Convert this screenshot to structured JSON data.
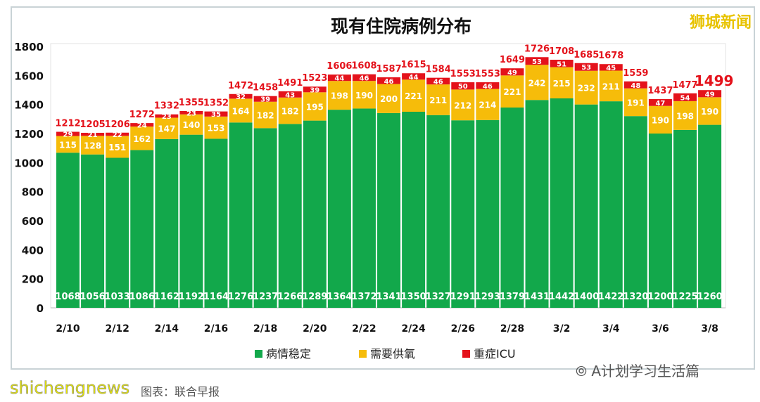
{
  "chart_data": {
    "type": "bar",
    "stacked": true,
    "title": "现有住院病例分布",
    "categories": [
      "2/10",
      "2/11",
      "2/12",
      "2/13",
      "2/14",
      "2/15",
      "2/16",
      "2/17",
      "2/18",
      "2/19",
      "2/20",
      "2/21",
      "2/22",
      "2/23",
      "2/24",
      "2/25",
      "2/26",
      "2/27",
      "2/28",
      "3/1",
      "3/2",
      "3/3",
      "3/4",
      "3/5",
      "3/6",
      "3/7",
      "3/8"
    ],
    "x_tick_labels": [
      "2/10",
      "2/12",
      "2/14",
      "2/16",
      "2/18",
      "2/20",
      "2/22",
      "2/24",
      "2/26",
      "2/28",
      "3/2",
      "3/4",
      "3/6",
      "3/8"
    ],
    "y_ticks": [
      0,
      200,
      400,
      600,
      800,
      1000,
      1200,
      1400,
      1600,
      1800
    ],
    "ylim": [
      0,
      1800
    ],
    "grid": false,
    "legend_position": "bottom",
    "series": [
      {
        "name": "病情稳定",
        "color": "#12a84b",
        "values": [
          1068,
          1056,
          1033,
          1086,
          1162,
          1192,
          1164,
          1276,
          1237,
          1266,
          1289,
          1364,
          1372,
          1341,
          1350,
          1327,
          1291,
          1293,
          1379,
          1431,
          1442,
          1400,
          1422,
          1320,
          1200,
          1225,
          1260
        ]
      },
      {
        "name": "需要供氧",
        "color": "#f6bc0a",
        "values": [
          115,
          128,
          151,
          162,
          147,
          140,
          153,
          164,
          182,
          182,
          195,
          198,
          190,
          200,
          221,
          211,
          212,
          214,
          221,
          242,
          215,
          232,
          211,
          191,
          190,
          198,
          190
        ]
      },
      {
        "name": "重症ICU",
        "color": "#e4121b",
        "values": [
          29,
          21,
          22,
          24,
          23,
          23,
          35,
          32,
          39,
          43,
          39,
          44,
          46,
          46,
          44,
          46,
          50,
          46,
          49,
          53,
          51,
          53,
          45,
          48,
          47,
          54,
          49
        ]
      }
    ],
    "totals": [
      1212,
      1205,
      1206,
      1272,
      1332,
      1355,
      1352,
      1472,
      1458,
      1491,
      1523,
      1606,
      1608,
      1587,
      1615,
      1584,
      1553,
      1553,
      1649,
      1726,
      1708,
      1685,
      1678,
      1559,
      1437,
      1477,
      1499
    ]
  },
  "watermarks": {
    "logo": "狮城新闻",
    "wechat": "A计划学习生活篇",
    "site": "shichengnews",
    "source": "图表：联合早报"
  }
}
